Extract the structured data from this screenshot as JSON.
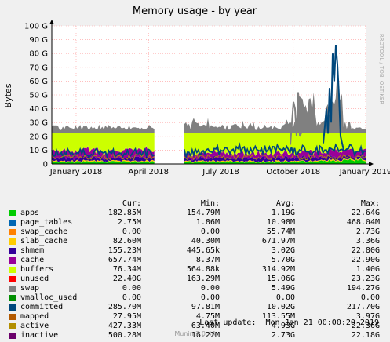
{
  "chart_data": {
    "type": "area",
    "title": "Memory usage - by year",
    "ylabel": "Bytes",
    "ylim": [
      0,
      100
    ],
    "y_ticks": [
      "0",
      "10 G",
      "20 G",
      "30 G",
      "40 G",
      "50 G",
      "60 G",
      "70 G",
      "80 G",
      "90 G",
      "100 G"
    ],
    "x_ticks": [
      "January 2018",
      "April 2018",
      "July 2018",
      "October 2018",
      "January 2019"
    ],
    "watermark": "RRDTOOL / TOBI OETIKER",
    "grid": true,
    "series": [
      {
        "name": "apps",
        "color": "#00cc00",
        "cur": "182.85M",
        "min": "154.79M",
        "avg": "1.19G",
        "max": "22.64G"
      },
      {
        "name": "page_tables",
        "color": "#0066b3",
        "cur": "2.75M",
        "min": "1.86M",
        "avg": "10.98M",
        "max": "468.04M"
      },
      {
        "name": "swap_cache",
        "color": "#ff8000",
        "cur": "0.00",
        "min": "0.00",
        "avg": "55.74M",
        "max": "2.73G"
      },
      {
        "name": "slab_cache",
        "color": "#ffcc00",
        "cur": "82.60M",
        "min": "40.30M",
        "avg": "671.97M",
        "max": "3.36G"
      },
      {
        "name": "shmem",
        "color": "#330099",
        "cur": "155.23M",
        "min": "445.65k",
        "avg": "3.02G",
        "max": "22.80G"
      },
      {
        "name": "cache",
        "color": "#990099",
        "cur": "657.74M",
        "min": "8.37M",
        "avg": "5.70G",
        "max": "22.90G"
      },
      {
        "name": "buffers",
        "color": "#ccff00",
        "cur": "76.34M",
        "min": "564.88k",
        "avg": "314.92M",
        "max": "1.40G"
      },
      {
        "name": "unused",
        "color": "#ff0000",
        "cur": "22.40G",
        "min": "163.29M",
        "avg": "15.06G",
        "max": "23.23G"
      },
      {
        "name": "swap",
        "color": "#808080",
        "cur": "0.00",
        "min": "0.00",
        "avg": "5.49G",
        "max": "194.27G"
      },
      {
        "name": "vmalloc_used",
        "color": "#008f00",
        "cur": "0.00",
        "min": "0.00",
        "avg": "0.00",
        "max": "0.00"
      },
      {
        "name": "committed",
        "color": "#00487d",
        "cur": "285.70M",
        "min": "97.81M",
        "avg": "10.02G",
        "max": "217.70G"
      },
      {
        "name": "mapped",
        "color": "#b35a00",
        "cur": "27.95M",
        "min": "4.75M",
        "avg": "113.55M",
        "max": "3.97G"
      },
      {
        "name": "active",
        "color": "#b38f00",
        "cur": "427.33M",
        "min": "63.40M",
        "avg": "4.93G",
        "max": "22.36G"
      },
      {
        "name": "inactive",
        "color": "#6b006b",
        "cur": "500.28M",
        "min": "16.22M",
        "avg": "2.73G",
        "max": "22.18G"
      }
    ]
  },
  "legend_header": {
    "cur": "Cur:",
    "min": "Min:",
    "avg": "Avg:",
    "max": "Max:"
  },
  "last_update": "Last update:  Mon Jan 21 00:00:20 2019",
  "footer": "Munin 2.0.44"
}
